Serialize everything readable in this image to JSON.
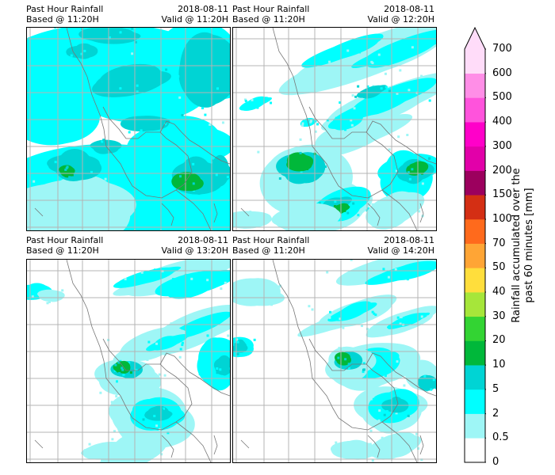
{
  "panels": [
    {
      "title": "Past Hour Rainfall",
      "based": "Based @ 11:20H",
      "date": "2018-08-11",
      "valid": "Valid @ 11:20H"
    },
    {
      "title": "Past Hour Rainfall",
      "based": "Based @ 11:20H",
      "date": "2018-08-11",
      "valid": "Valid @ 12:20H"
    },
    {
      "title": "Past Hour Rainfall",
      "based": "Based @ 11:20H",
      "date": "2018-08-11",
      "valid": "Valid @ 13:20H"
    },
    {
      "title": "Past Hour Rainfall",
      "based": "Based @ 11:20H",
      "date": "2018-08-11",
      "valid": "Valid @ 14:20H"
    }
  ],
  "colorbar": {
    "label_line1": "Rainfall accumulated over the",
    "label_line2": "past 60 minutes [mm]",
    "ticks": [
      "0",
      "0.5",
      "2",
      "5",
      "10",
      "20",
      "30",
      "40",
      "50",
      "70",
      "100",
      "150",
      "200",
      "300",
      "400",
      "500",
      "600",
      "700"
    ],
    "colors": [
      "#ffffff",
      "#9ef6f6",
      "#00ffff",
      "#00d4d4",
      "#00b83a",
      "#33d433",
      "#a6e63a",
      "#ffde3c",
      "#ffa535",
      "#ff6a1c",
      "#d42f14",
      "#9c005e",
      "#e200a9",
      "#ff00c9",
      "#ff53dc",
      "#ff8ee7",
      "#ffdcf9"
    ],
    "extend": "max"
  }
}
